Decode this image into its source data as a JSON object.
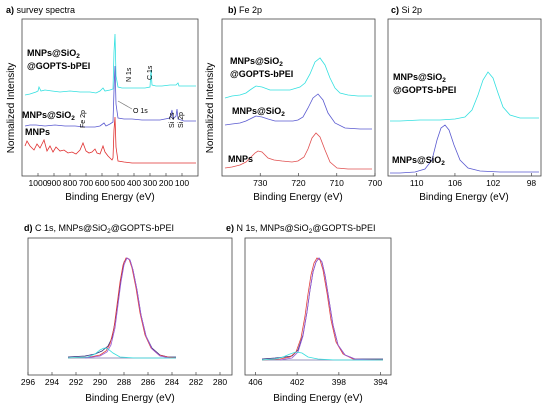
{
  "chart_data": [
    {
      "type": "line",
      "panel_label": "a)",
      "title": "survey spectra",
      "xlabel": "Binding Energy (eV)",
      "ylabel": "Normalized Intensity",
      "x_reversed": true,
      "xlim": [
        1100,
        0
      ],
      "xticks": [
        1000,
        900,
        800,
        700,
        600,
        500,
        400,
        300,
        200,
        100
      ],
      "series": [
        {
          "name": "MNPs@SiO2 @GOPTS-bPEI",
          "color": "#33e0e0"
        },
        {
          "name": "MNPs@SiO2",
          "color": "#5a5ad0"
        },
        {
          "name": "MNPs",
          "color": "#e03030"
        }
      ],
      "annotations": [
        "N 1s",
        "C 1s",
        "O 1s",
        "Fe 2p",
        "Si 2s",
        "Si 2p"
      ],
      "grid": false
    },
    {
      "type": "line",
      "panel_label": "b)",
      "title": "Fe 2p",
      "xlabel": "Binding Energy (eV)",
      "ylabel": "Normalized Intensity",
      "x_reversed": true,
      "xlim": [
        740,
        700
      ],
      "xticks": [
        730,
        720,
        710,
        700
      ],
      "series": [
        {
          "name": "MNPs@SiO2 @GOPTS-bPEI",
          "color": "#33e0e0"
        },
        {
          "name": "MNPs@SiO2",
          "color": "#5a5ad0"
        },
        {
          "name": "MNPs",
          "color": "#e05050"
        }
      ],
      "grid": false
    },
    {
      "type": "line",
      "panel_label": "c)",
      "title": "Si 2p",
      "xlabel": "Binding Energy (eV)",
      "x_reversed": true,
      "xlim": [
        113,
        97
      ],
      "xticks": [
        110,
        106,
        102,
        98
      ],
      "series": [
        {
          "name": "MNPs@SiO2 @GOPTS-bPEI",
          "color": "#33e0e0"
        },
        {
          "name": "MNPs@SiO2",
          "color": "#5a5ad0"
        }
      ],
      "grid": false
    },
    {
      "type": "line",
      "panel_label": "d)",
      "title": "C 1s, MNPs@SiO2@GOPTS-bPEI",
      "xlabel": "Binding Energy (eV)",
      "x_reversed": true,
      "xlim": [
        296,
        279
      ],
      "xticks": [
        296,
        294,
        292,
        290,
        288,
        286,
        284,
        282,
        280
      ],
      "series": [
        {
          "name": "",
          "color": "#2c2c7a"
        },
        {
          "name": "",
          "color": "#e04040"
        },
        {
          "name": "",
          "color": "#9a5ad8"
        },
        {
          "name": "",
          "color": "#33dede"
        }
      ],
      "grid": false
    },
    {
      "type": "line",
      "panel_label": "e)",
      "title": "N 1s, MNPs@SiO2@GOPTS-bPEI",
      "xlabel": "Binding Energy (eV)",
      "x_reversed": true,
      "xlim": [
        407,
        393
      ],
      "xticks": [
        406,
        402,
        398,
        394
      ],
      "series": [
        {
          "name": "",
          "color": "#2c2c7a"
        },
        {
          "name": "",
          "color": "#e04040"
        },
        {
          "name": "",
          "color": "#9a5ad8"
        },
        {
          "name": "",
          "color": "#33dede"
        }
      ],
      "grid": false
    }
  ]
}
